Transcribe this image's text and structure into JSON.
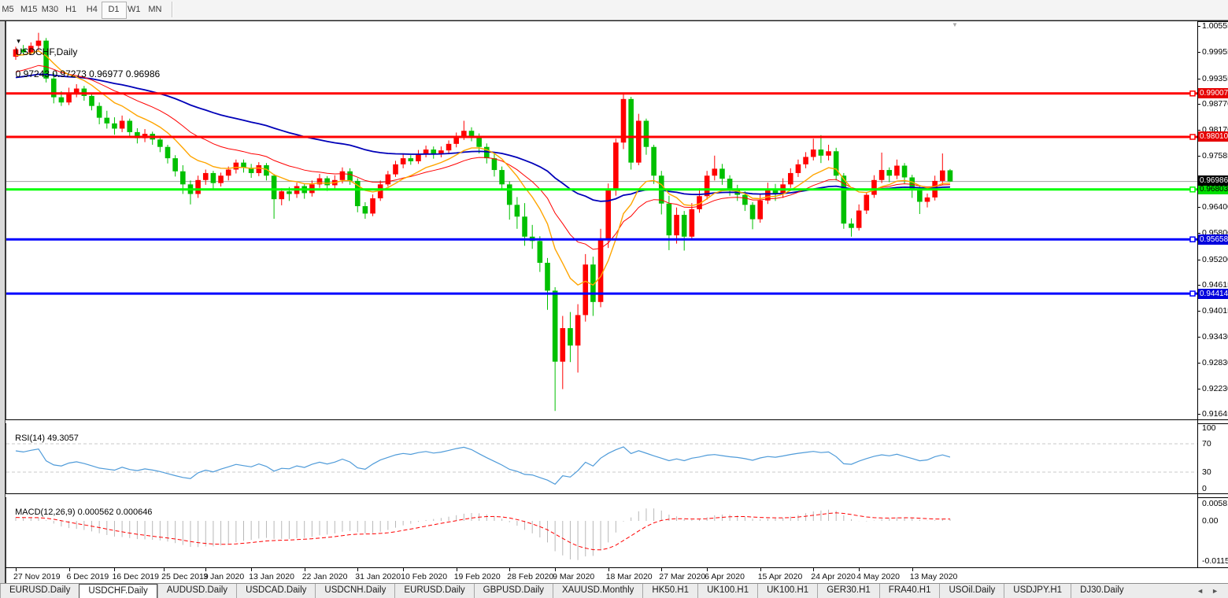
{
  "toolbar": {
    "timeframes": [
      "M5",
      "M15",
      "M30",
      "H1",
      "H4",
      "D1",
      "W1",
      "MN"
    ],
    "active": "D1"
  },
  "chart_data": {
    "type": "candlestick",
    "symbol": "USDCHF",
    "period": "Daily",
    "title": "USDCHF,Daily",
    "ohlc_display": "0.97243 0.97273 0.96977 0.96986",
    "last_candle": {
      "open": 0.97243,
      "high": 0.97273,
      "low": 0.96977,
      "close": 0.96986
    },
    "ylim": [
      0.91525,
      1.00665
    ],
    "grid": false,
    "up_color": "#ff0000",
    "down_color": "#00c000",
    "candles": [
      [
        0.9985,
        1.0008,
        0.9978,
        1.0002
      ],
      [
        1.0002,
        1.0012,
        0.9988,
        0.9995
      ],
      [
        0.9995,
        1.0018,
        0.999,
        1.001
      ],
      [
        1.001,
        1.004,
        1.0,
        1.0022
      ],
      [
        1.0022,
        1.0028,
        0.9926,
        0.9935
      ],
      [
        0.9935,
        0.9948,
        0.9878,
        0.9892
      ],
      [
        0.9892,
        0.9906,
        0.9872,
        0.988
      ],
      [
        0.988,
        0.9914,
        0.9874,
        0.9902
      ],
      [
        0.9902,
        0.9922,
        0.9892,
        0.9912
      ],
      [
        0.9912,
        0.9918,
        0.9884,
        0.9895
      ],
      [
        0.9895,
        0.9903,
        0.9862,
        0.9872
      ],
      [
        0.9872,
        0.988,
        0.983,
        0.9845
      ],
      [
        0.9845,
        0.9861,
        0.982,
        0.9832
      ],
      [
        0.9832,
        0.9846,
        0.9806,
        0.982
      ],
      [
        0.982,
        0.985,
        0.9812,
        0.9838
      ],
      [
        0.9838,
        0.9843,
        0.98,
        0.9812
      ],
      [
        0.9812,
        0.9821,
        0.9786,
        0.9798
      ],
      [
        0.9798,
        0.9819,
        0.9789,
        0.9808
      ],
      [
        0.9808,
        0.9813,
        0.9783,
        0.9795
      ],
      [
        0.9795,
        0.9801,
        0.9766,
        0.9778
      ],
      [
        0.9778,
        0.9783,
        0.974,
        0.9752
      ],
      [
        0.9752,
        0.9759,
        0.971,
        0.9722
      ],
      [
        0.9722,
        0.9736,
        0.967,
        0.9692
      ],
      [
        0.9692,
        0.9701,
        0.9646,
        0.967
      ],
      [
        0.967,
        0.9712,
        0.9661,
        0.9702
      ],
      [
        0.9702,
        0.9726,
        0.9691,
        0.9718
      ],
      [
        0.9718,
        0.9723,
        0.9681,
        0.9695
      ],
      [
        0.9695,
        0.9719,
        0.9687,
        0.9712
      ],
      [
        0.9712,
        0.9733,
        0.9701,
        0.9726
      ],
      [
        0.9726,
        0.9749,
        0.9717,
        0.9742
      ],
      [
        0.9742,
        0.9749,
        0.9719,
        0.973
      ],
      [
        0.973,
        0.9739,
        0.9707,
        0.9718
      ],
      [
        0.9718,
        0.9743,
        0.9711,
        0.9736
      ],
      [
        0.9736,
        0.9741,
        0.9701,
        0.9712
      ],
      [
        0.9712,
        0.9716,
        0.9613,
        0.9658
      ],
      [
        0.9658,
        0.9683,
        0.9644,
        0.9676
      ],
      [
        0.9676,
        0.9686,
        0.9654,
        0.967
      ],
      [
        0.967,
        0.9696,
        0.9661,
        0.9688
      ],
      [
        0.9688,
        0.9693,
        0.9659,
        0.9672
      ],
      [
        0.9672,
        0.9701,
        0.9664,
        0.9692
      ],
      [
        0.9692,
        0.9716,
        0.9684,
        0.9706
      ],
      [
        0.9706,
        0.9711,
        0.9677,
        0.969
      ],
      [
        0.969,
        0.9713,
        0.9681,
        0.9702
      ],
      [
        0.9702,
        0.9731,
        0.9694,
        0.9722
      ],
      [
        0.9722,
        0.9729,
        0.9691,
        0.97
      ],
      [
        0.97,
        0.9706,
        0.9628,
        0.9642
      ],
      [
        0.9642,
        0.9651,
        0.9613,
        0.9625
      ],
      [
        0.9625,
        0.9669,
        0.9619,
        0.966
      ],
      [
        0.966,
        0.9701,
        0.9654,
        0.9692
      ],
      [
        0.9692,
        0.9723,
        0.9687,
        0.9715
      ],
      [
        0.9715,
        0.9746,
        0.9709,
        0.9738
      ],
      [
        0.9738,
        0.9761,
        0.9729,
        0.9752
      ],
      [
        0.9752,
        0.9759,
        0.9737,
        0.9745
      ],
      [
        0.9745,
        0.9771,
        0.9739,
        0.9762
      ],
      [
        0.9762,
        0.9781,
        0.9754,
        0.9772
      ],
      [
        0.9772,
        0.9779,
        0.9751,
        0.9762
      ],
      [
        0.9762,
        0.9779,
        0.9754,
        0.977
      ],
      [
        0.977,
        0.9793,
        0.9761,
        0.9785
      ],
      [
        0.9785,
        0.9811,
        0.9777,
        0.9802
      ],
      [
        0.9802,
        0.9838,
        0.9794,
        0.9815
      ],
      [
        0.9815,
        0.9823,
        0.9791,
        0.9802
      ],
      [
        0.9802,
        0.9809,
        0.9763,
        0.9778
      ],
      [
        0.9778,
        0.9786,
        0.974,
        0.9752
      ],
      [
        0.9752,
        0.9763,
        0.971,
        0.9725
      ],
      [
        0.9725,
        0.9733,
        0.968,
        0.9692
      ],
      [
        0.9692,
        0.9699,
        0.9611,
        0.9645
      ],
      [
        0.9645,
        0.9663,
        0.959,
        0.9618
      ],
      [
        0.9618,
        0.9649,
        0.9551,
        0.9572
      ],
      [
        0.9572,
        0.9599,
        0.9544,
        0.9562
      ],
      [
        0.9562,
        0.9573,
        0.9491,
        0.9512
      ],
      [
        0.9512,
        0.9523,
        0.9404,
        0.9448
      ],
      [
        0.9448,
        0.9456,
        0.9172,
        0.9285
      ],
      [
        0.9285,
        0.939,
        0.9222,
        0.9362
      ],
      [
        0.9362,
        0.9399,
        0.9284,
        0.9322
      ],
      [
        0.9322,
        0.9417,
        0.926,
        0.9392
      ],
      [
        0.9392,
        0.9532,
        0.9377,
        0.9508
      ],
      [
        0.9508,
        0.9526,
        0.939,
        0.9422
      ],
      [
        0.9422,
        0.959,
        0.941,
        0.9568
      ],
      [
        0.9568,
        0.9694,
        0.9546,
        0.9682
      ],
      [
        0.9682,
        0.9797,
        0.9666,
        0.9788
      ],
      [
        0.9788,
        0.9901,
        0.9773,
        0.9888
      ],
      [
        0.9888,
        0.9893,
        0.9726,
        0.9742
      ],
      [
        0.9742,
        0.9854,
        0.9736,
        0.9838
      ],
      [
        0.9838,
        0.9843,
        0.976,
        0.9778
      ],
      [
        0.9778,
        0.9783,
        0.9693,
        0.9712
      ],
      [
        0.9712,
        0.9723,
        0.9623,
        0.9648
      ],
      [
        0.9648,
        0.9666,
        0.9541,
        0.9575
      ],
      [
        0.9575,
        0.9639,
        0.9556,
        0.9622
      ],
      [
        0.9622,
        0.9631,
        0.954,
        0.9572
      ],
      [
        0.9572,
        0.9649,
        0.9564,
        0.9635
      ],
      [
        0.9635,
        0.9683,
        0.9627,
        0.9665
      ],
      [
        0.9665,
        0.9723,
        0.9657,
        0.9712
      ],
      [
        0.9712,
        0.9758,
        0.9701,
        0.9728
      ],
      [
        0.9728,
        0.9739,
        0.9691,
        0.9705
      ],
      [
        0.9705,
        0.9713,
        0.9666,
        0.9682
      ],
      [
        0.9682,
        0.9691,
        0.9654,
        0.9668
      ],
      [
        0.9668,
        0.9676,
        0.9631,
        0.9645
      ],
      [
        0.9645,
        0.9651,
        0.9589,
        0.9612
      ],
      [
        0.9612,
        0.9669,
        0.9604,
        0.9655
      ],
      [
        0.9655,
        0.9696,
        0.9647,
        0.9682
      ],
      [
        0.9682,
        0.9693,
        0.9654,
        0.967
      ],
      [
        0.967,
        0.9706,
        0.9661,
        0.9692
      ],
      [
        0.9692,
        0.9729,
        0.9684,
        0.9718
      ],
      [
        0.9718,
        0.9749,
        0.9709,
        0.9738
      ],
      [
        0.9738,
        0.9766,
        0.9729,
        0.9755
      ],
      [
        0.9755,
        0.9797,
        0.9747,
        0.9772
      ],
      [
        0.9772,
        0.9805,
        0.9741,
        0.9758
      ],
      [
        0.9758,
        0.9783,
        0.9747,
        0.9768
      ],
      [
        0.9768,
        0.9776,
        0.9701,
        0.9712
      ],
      [
        0.9712,
        0.9718,
        0.959,
        0.9602
      ],
      [
        0.9602,
        0.9614,
        0.9572,
        0.9592
      ],
      [
        0.9592,
        0.9646,
        0.9586,
        0.9632
      ],
      [
        0.9632,
        0.9674,
        0.9624,
        0.9668
      ],
      [
        0.9668,
        0.9713,
        0.9661,
        0.9702
      ],
      [
        0.9702,
        0.9765,
        0.9695,
        0.9725
      ],
      [
        0.9725,
        0.9731,
        0.9697,
        0.9712
      ],
      [
        0.9712,
        0.9749,
        0.9704,
        0.9735
      ],
      [
        0.9735,
        0.9741,
        0.9694,
        0.9708
      ],
      [
        0.9708,
        0.9714,
        0.9661,
        0.9682
      ],
      [
        0.9682,
        0.9688,
        0.9624,
        0.9652
      ],
      [
        0.9652,
        0.9671,
        0.9639,
        0.9662
      ],
      [
        0.9662,
        0.9712,
        0.9655,
        0.97
      ],
      [
        0.97,
        0.9763,
        0.9691,
        0.9724
      ],
      [
        0.97243,
        0.97273,
        0.96977,
        0.96986
      ]
    ],
    "x_labels": [
      {
        "text": "27 Nov 2019",
        "i": 0
      },
      {
        "text": "6 Dec 2019",
        "i": 7
      },
      {
        "text": "16 Dec 2019",
        "i": 13
      },
      {
        "text": "25 Dec 2019",
        "i": 19.5
      },
      {
        "text": "3 Jan 2020",
        "i": 25
      },
      {
        "text": "13 Jan 2020",
        "i": 31
      },
      {
        "text": "22 Jan 2020",
        "i": 38
      },
      {
        "text": "31 Jan 2020",
        "i": 45
      },
      {
        "text": "10 Feb 2020",
        "i": 51
      },
      {
        "text": "19 Feb 2020",
        "i": 58
      },
      {
        "text": "28 Feb 2020",
        "i": 65
      },
      {
        "text": "9 Mar 2020",
        "i": 71
      },
      {
        "text": "18 Mar 2020",
        "i": 78
      },
      {
        "text": "27 Mar 2020",
        "i": 85
      },
      {
        "text": "6 Apr 2020",
        "i": 91
      },
      {
        "text": "15 Apr 2020",
        "i": 98
      },
      {
        "text": "24 Apr 2020",
        "i": 105
      },
      {
        "text": "4 May 2020",
        "i": 111
      },
      {
        "text": "13 May 2020",
        "i": 118
      }
    ],
    "y_ticks": [
      1.00555,
      0.99955,
      0.99355,
      0.9877,
      0.9817,
      0.97585,
      0.964,
      0.958,
      0.952,
      0.94615,
      0.94015,
      0.9343,
      0.9283,
      0.9223,
      0.91645
    ],
    "levels": [
      {
        "price": 0.99007,
        "color": "#ff0000",
        "bg": "#e60000",
        "fg": "#ffffff",
        "width": 3,
        "name": "resistance-line-1"
      },
      {
        "price": 0.9801,
        "color": "#ff0000",
        "bg": "#e60000",
        "fg": "#ffffff",
        "width": 3,
        "name": "resistance-line-2"
      },
      {
        "price": 0.96803,
        "color": "#00ff00",
        "bg": "#00e000",
        "fg": "#000000",
        "width": 3,
        "name": "support-line-green"
      },
      {
        "price": 0.95658,
        "color": "#0000ff",
        "bg": "#0000dd",
        "fg": "#ffffff",
        "width": 3,
        "name": "support-line-blue-1"
      },
      {
        "price": 0.94414,
        "color": "#0000ff",
        "bg": "#0000dd",
        "fg": "#ffffff",
        "width": 3,
        "name": "support-line-blue-2"
      }
    ],
    "current_price": {
      "price": 0.96986,
      "line_color": "#a0a0a0",
      "bg": "#000000",
      "fg": "#ffffff"
    },
    "moving_averages": [
      {
        "name": "ma-slow-blue",
        "period": 55,
        "seed": 0.9935,
        "color": "#0000b8",
        "width": 1.8
      },
      {
        "name": "ma-mid-red",
        "period": 21,
        "seed": 0.9945,
        "color": "#ff0000",
        "width": 1
      },
      {
        "name": "ma-fast-orange",
        "period": 10,
        "seed": 0.9985,
        "color": "#ffa500",
        "width": 1.4
      }
    ],
    "rsi": {
      "label": "RSI(14)",
      "value": "49.3057",
      "color": "#4f9bd9",
      "level_color": "#c8c8c8",
      "levels": [
        70,
        30
      ],
      "scale_labels": [
        "100",
        "70",
        "30",
        "0"
      ],
      "seed_gain": 0.0012,
      "seed_loss": 0.0008
    },
    "macd": {
      "label": "MACD(12,26,9)",
      "values": "0.000562 0.000646",
      "hist_color": "#b8b8b8",
      "signal_color": "#ff0000",
      "scale_top": "0.005818",
      "scale_zero": "0.00",
      "scale_bottom": "-0.01151"
    }
  },
  "tabs": {
    "items": [
      "EURUSD.Daily",
      "USDCHF.Daily",
      "AUDUSD.Daily",
      "USDCAD.Daily",
      "USDCNH.Daily",
      "EURUSD.Daily",
      "GBPUSD.Daily",
      "XAUUSD.Monthly",
      "HK50.H1",
      "UK100.H1",
      "UK100.H1",
      "GER30.H1",
      "FRA40.H1",
      "USOil.Daily",
      "USDJPY.H1",
      "DJ30.Daily"
    ],
    "active_index": 1,
    "scroll_left": "◄",
    "scroll_right": "►"
  }
}
